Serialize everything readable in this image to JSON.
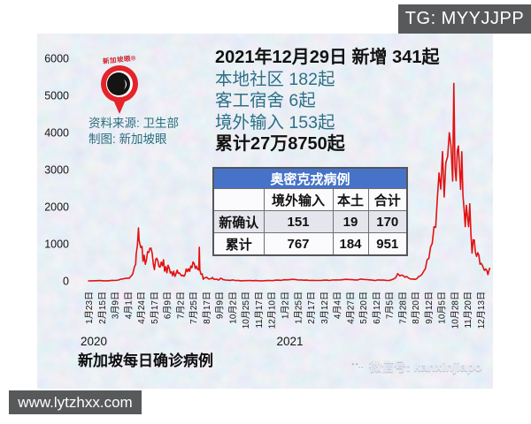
{
  "telegram_badge": "TG: MYYJJPP",
  "website_badge": "www.lytzhxx.com",
  "logo": {
    "brand": "新加坡眼®"
  },
  "source": {
    "line1": "资料来源: 卫生部",
    "line2": "制图: 新加坡眼"
  },
  "annotation": {
    "headline": "2021年12月29日 新增 341起",
    "lines": [
      "本地社区 182起",
      "客工宿舍 6起",
      "境外输入 153起"
    ],
    "total": "累计27万8750起"
  },
  "omicron_table": {
    "title": "奥密克戎病例",
    "columns": [
      "",
      "境外输入",
      "本土",
      "合计"
    ],
    "rows": [
      {
        "label": "新确认",
        "values": [
          "151",
          "19",
          "170"
        ]
      },
      {
        "label": "累计",
        "values": [
          "767",
          "184",
          "951"
        ]
      }
    ]
  },
  "chart_title": "新加坡每日确诊病例",
  "wechat_watermark": "微信号: kanxinjiapo",
  "chart_data": {
    "type": "line",
    "title": "新加坡每日确诊病例",
    "line_color": "#e01212",
    "grid": false,
    "legend": false,
    "ylim": [
      0,
      6000
    ],
    "y_ticks": [
      0,
      1000,
      2000,
      3000,
      4000,
      5000,
      6000
    ],
    "start_date": "2020-01-23",
    "x_tick_interval_days": 23,
    "x_tick_labels": [
      "1月23日",
      "2月15日",
      "3月9日",
      "4月1日",
      "4月24日",
      "5月17日",
      "6月9日",
      "7月2日",
      "7月25日",
      "8月17日",
      "9月9日",
      "10月2日",
      "10月25日",
      "11月17日",
      "12月10日",
      "1月2日",
      "1月25日",
      "2月17日",
      "3月12日",
      "4月4日",
      "4月27日",
      "5月20日",
      "6月12日",
      "7月5日",
      "7月28日",
      "8月20日",
      "9月12日",
      "10月5日",
      "10月28日",
      "11月20日",
      "12月13日"
    ],
    "year_labels": [
      {
        "label": "2020",
        "tick_index": 0
      },
      {
        "label": "2021",
        "tick_index": 15
      }
    ],
    "points": [
      [
        "2020-01-23",
        1
      ],
      [
        "2020-01-29",
        3
      ],
      [
        "2020-02-05",
        5
      ],
      [
        "2020-02-12",
        9
      ],
      [
        "2020-02-19",
        3
      ],
      [
        "2020-02-26",
        2
      ],
      [
        "2020-03-04",
        15
      ],
      [
        "2020-03-10",
        12
      ],
      [
        "2020-03-16",
        23
      ],
      [
        "2020-03-20",
        47
      ],
      [
        "2020-03-24",
        54
      ],
      [
        "2020-03-28",
        70
      ],
      [
        "2020-04-01",
        74
      ],
      [
        "2020-04-04",
        75
      ],
      [
        "2020-04-06",
        120
      ],
      [
        "2020-04-08",
        142
      ],
      [
        "2020-04-10",
        198
      ],
      [
        "2020-04-13",
        386
      ],
      [
        "2020-04-15",
        447
      ],
      [
        "2020-04-16",
        728
      ],
      [
        "2020-04-18",
        942
      ],
      [
        "2020-04-20",
        1426
      ],
      [
        "2020-04-21",
        1111
      ],
      [
        "2020-04-22",
        1016
      ],
      [
        "2020-04-24",
        897
      ],
      [
        "2020-04-26",
        931
      ],
      [
        "2020-04-28",
        528
      ],
      [
        "2020-04-30",
        690
      ],
      [
        "2020-05-02",
        447
      ],
      [
        "2020-05-04",
        573
      ],
      [
        "2020-05-06",
        788
      ],
      [
        "2020-05-08",
        768
      ],
      [
        "2020-05-10",
        876
      ],
      [
        "2020-05-12",
        884
      ],
      [
        "2020-05-14",
        752
      ],
      [
        "2020-05-16",
        465
      ],
      [
        "2020-05-18",
        305
      ],
      [
        "2020-05-20",
        570
      ],
      [
        "2020-05-22",
        612
      ],
      [
        "2020-05-24",
        548
      ],
      [
        "2020-05-26",
        383
      ],
      [
        "2020-05-28",
        373
      ],
      [
        "2020-05-30",
        506
      ],
      [
        "2020-06-01",
        408
      ],
      [
        "2020-06-03",
        569
      ],
      [
        "2020-06-05",
        261
      ],
      [
        "2020-06-07",
        383
      ],
      [
        "2020-06-09",
        218
      ],
      [
        "2020-06-11",
        422
      ],
      [
        "2020-06-13",
        347
      ],
      [
        "2020-06-15",
        214
      ],
      [
        "2020-06-17",
        247
      ],
      [
        "2020-06-19",
        142
      ],
      [
        "2020-06-21",
        262
      ],
      [
        "2020-06-23",
        119
      ],
      [
        "2020-06-25",
        191
      ],
      [
        "2020-06-27",
        291
      ],
      [
        "2020-06-29",
        202
      ],
      [
        "2020-07-01",
        215
      ],
      [
        "2020-07-03",
        169
      ],
      [
        "2020-07-05",
        136
      ],
      [
        "2020-07-07",
        157
      ],
      [
        "2020-07-09",
        125
      ],
      [
        "2020-07-11",
        170
      ],
      [
        "2020-07-13",
        322
      ],
      [
        "2020-07-15",
        249
      ],
      [
        "2020-07-17",
        327
      ],
      [
        "2020-07-19",
        257
      ],
      [
        "2020-07-21",
        399
      ],
      [
        "2020-07-23",
        354
      ],
      [
        "2020-07-25",
        513
      ],
      [
        "2020-07-27",
        469
      ],
      [
        "2020-07-29",
        334
      ],
      [
        "2020-07-31",
        396
      ],
      [
        "2020-08-02",
        313
      ],
      [
        "2020-08-04",
        295
      ],
      [
        "2020-08-05",
        908
      ],
      [
        "2020-08-06",
        301
      ],
      [
        "2020-08-08",
        175
      ],
      [
        "2020-08-10",
        188
      ],
      [
        "2020-08-12",
        42
      ],
      [
        "2020-08-14",
        83
      ],
      [
        "2020-08-16",
        86
      ],
      [
        "2020-08-18",
        100
      ],
      [
        "2020-08-20",
        68
      ],
      [
        "2020-08-22",
        50
      ],
      [
        "2020-08-24",
        58
      ],
      [
        "2020-08-26",
        60
      ],
      [
        "2020-08-28",
        94
      ],
      [
        "2020-08-31",
        41
      ],
      [
        "2020-09-04",
        49
      ],
      [
        "2020-09-08",
        22
      ],
      [
        "2020-09-12",
        75
      ],
      [
        "2020-09-16",
        34
      ],
      [
        "2020-09-20",
        23
      ],
      [
        "2020-09-24",
        18
      ],
      [
        "2020-09-28",
        15
      ],
      [
        "2020-10-03",
        27
      ],
      [
        "2020-10-08",
        9
      ],
      [
        "2020-10-13",
        10
      ],
      [
        "2020-10-18",
        3
      ],
      [
        "2020-10-23",
        8
      ],
      [
        "2020-10-28",
        7
      ],
      [
        "2020-11-02",
        12
      ],
      [
        "2020-11-07",
        4
      ],
      [
        "2020-11-12",
        9
      ],
      [
        "2020-11-17",
        4
      ],
      [
        "2020-11-22",
        3
      ],
      [
        "2020-11-27",
        5
      ],
      [
        "2020-12-02",
        10
      ],
      [
        "2020-12-07",
        13
      ],
      [
        "2020-12-12",
        6
      ],
      [
        "2020-12-17",
        20
      ],
      [
        "2020-12-22",
        21
      ],
      [
        "2020-12-27",
        14
      ],
      [
        "2021-01-01",
        30
      ],
      [
        "2021-01-06",
        28
      ],
      [
        "2021-01-11",
        33
      ],
      [
        "2021-01-16",
        42
      ],
      [
        "2021-01-21",
        38
      ],
      [
        "2021-01-26",
        24
      ],
      [
        "2021-01-31",
        25
      ],
      [
        "2021-02-05",
        19
      ],
      [
        "2021-02-10",
        22
      ],
      [
        "2021-02-15",
        11
      ],
      [
        "2021-02-20",
        14
      ],
      [
        "2021-02-25",
        13
      ],
      [
        "2021-03-02",
        13
      ],
      [
        "2021-03-07",
        12
      ],
      [
        "2021-03-12",
        19
      ],
      [
        "2021-03-17",
        21
      ],
      [
        "2021-03-22",
        12
      ],
      [
        "2021-03-27",
        23
      ],
      [
        "2021-04-01",
        26
      ],
      [
        "2021-04-06",
        26
      ],
      [
        "2021-04-11",
        29
      ],
      [
        "2021-04-16",
        39
      ],
      [
        "2021-04-21",
        42
      ],
      [
        "2021-04-26",
        39
      ],
      [
        "2021-05-01",
        34
      ],
      [
        "2021-05-06",
        26
      ],
      [
        "2021-05-11",
        25
      ],
      [
        "2021-05-16",
        49
      ],
      [
        "2021-05-21",
        41
      ],
      [
        "2021-05-26",
        36
      ],
      [
        "2021-05-31",
        28
      ],
      [
        "2021-06-05",
        22
      ],
      [
        "2021-06-10",
        10
      ],
      [
        "2021-06-15",
        25
      ],
      [
        "2021-06-20",
        22
      ],
      [
        "2021-06-25",
        23
      ],
      [
        "2021-06-30",
        14
      ],
      [
        "2021-07-05",
        12
      ],
      [
        "2021-07-10",
        32
      ],
      [
        "2021-07-14",
        60
      ],
      [
        "2021-07-17",
        92
      ],
      [
        "2021-07-20",
        195
      ],
      [
        "2021-07-22",
        170
      ],
      [
        "2021-07-24",
        136
      ],
      [
        "2021-07-27",
        156
      ],
      [
        "2021-07-30",
        139
      ],
      [
        "2021-08-02",
        98
      ],
      [
        "2021-08-05",
        120
      ],
      [
        "2021-08-08",
        79
      ],
      [
        "2021-08-11",
        54
      ],
      [
        "2021-08-14",
        48
      ],
      [
        "2021-08-17",
        53
      ],
      [
        "2021-08-20",
        40
      ],
      [
        "2021-08-23",
        63
      ],
      [
        "2021-08-26",
        116
      ],
      [
        "2021-08-29",
        133
      ],
      [
        "2021-09-01",
        180
      ],
      [
        "2021-09-04",
        260
      ],
      [
        "2021-09-07",
        332
      ],
      [
        "2021-09-10",
        568
      ],
      [
        "2021-09-13",
        607
      ],
      [
        "2021-09-16",
        910
      ],
      [
        "2021-09-19",
        1012
      ],
      [
        "2021-09-22",
        1457
      ],
      [
        "2021-09-25",
        1443
      ],
      [
        "2021-09-28",
        2236
      ],
      [
        "2021-10-01",
        2909
      ],
      [
        "2021-10-04",
        2475
      ],
      [
        "2021-10-07",
        3483
      ],
      [
        "2021-10-10",
        2263
      ],
      [
        "2021-10-13",
        3190
      ],
      [
        "2021-10-16",
        3348
      ],
      [
        "2021-10-19",
        3994
      ],
      [
        "2021-10-22",
        3637
      ],
      [
        "2021-10-25",
        2694
      ],
      [
        "2021-10-27",
        5324
      ],
      [
        "2021-10-29",
        3035
      ],
      [
        "2021-10-31",
        2700
      ],
      [
        "2021-11-02",
        3496
      ],
      [
        "2021-11-04",
        3635
      ],
      [
        "2021-11-06",
        3035
      ],
      [
        "2021-11-08",
        2470
      ],
      [
        "2021-11-10",
        3481
      ],
      [
        "2021-11-12",
        2304
      ],
      [
        "2021-11-14",
        1930
      ],
      [
        "2021-11-16",
        1461
      ],
      [
        "2021-11-18",
        2038
      ],
      [
        "2021-11-20",
        1734
      ],
      [
        "2021-11-22",
        1461
      ],
      [
        "2021-11-24",
        2079
      ],
      [
        "2021-11-26",
        1275
      ],
      [
        "2021-11-28",
        747
      ],
      [
        "2021-11-30",
        1110
      ],
      [
        "2021-12-02",
        1101
      ],
      [
        "2021-12-04",
        766
      ],
      [
        "2021-12-06",
        662
      ],
      [
        "2021-12-08",
        759
      ],
      [
        "2021-12-10",
        693
      ],
      [
        "2021-12-12",
        449
      ],
      [
        "2021-12-14",
        475
      ],
      [
        "2021-12-16",
        425
      ],
      [
        "2021-12-18",
        350
      ],
      [
        "2021-12-20",
        280
      ],
      [
        "2021-12-22",
        322
      ],
      [
        "2021-12-24",
        281
      ],
      [
        "2021-12-26",
        170
      ],
      [
        "2021-12-28",
        289
      ],
      [
        "2021-12-29",
        341
      ]
    ]
  }
}
